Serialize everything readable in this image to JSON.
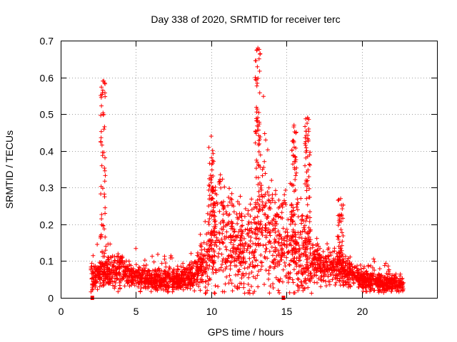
{
  "chart_data": {
    "type": "scatter",
    "title": "Day 338 of 2020, SRMTID for receiver terc",
    "xlabel": "GPS time / hours",
    "ylabel": "SRMTID / TECUs",
    "xlim": [
      0,
      25
    ],
    "ylim": [
      0,
      0.7
    ],
    "xticks": [
      "0",
      "5",
      "10",
      "15",
      "20"
    ],
    "yticks": [
      "0",
      "0.1",
      "0.2",
      "0.3",
      "0.4",
      "0.5",
      "0.6",
      "0.7"
    ],
    "grid": true,
    "marker": "+",
    "color": "#ff0000",
    "gap_markers_x": [
      2.1,
      14.8
    ],
    "envelope": {
      "time_hours": [
        2.0,
        2.5,
        3.0,
        3.5,
        4.0,
        4.5,
        5.0,
        5.5,
        6.0,
        6.5,
        7.0,
        7.5,
        8.0,
        8.5,
        9.0,
        9.5,
        10.0,
        10.5,
        11.0,
        11.5,
        12.0,
        12.5,
        13.0,
        13.5,
        14.0,
        14.5,
        15.0,
        15.5,
        16.0,
        16.5,
        17.0,
        17.5,
        18.0,
        18.5,
        19.0,
        19.5,
        20.0,
        20.5,
        21.0,
        21.5,
        22.0,
        22.5,
        22.8
      ],
      "typical_srmtid": [
        0.055,
        0.06,
        0.07,
        0.07,
        0.08,
        0.06,
        0.06,
        0.05,
        0.05,
        0.05,
        0.05,
        0.045,
        0.05,
        0.06,
        0.07,
        0.09,
        0.14,
        0.19,
        0.17,
        0.15,
        0.13,
        0.12,
        0.16,
        0.19,
        0.17,
        0.15,
        0.13,
        0.12,
        0.13,
        0.11,
        0.09,
        0.08,
        0.08,
        0.08,
        0.07,
        0.06,
        0.05,
        0.045,
        0.045,
        0.04,
        0.04,
        0.035,
        0.03
      ]
    },
    "spikes": [
      {
        "time_hours": 2.8,
        "peak_srmtid": 0.59
      },
      {
        "time_hours": 10.0,
        "peak_srmtid": 0.44
      },
      {
        "time_hours": 13.1,
        "peak_srmtid": 0.68
      },
      {
        "time_hours": 15.5,
        "peak_srmtid": 0.47
      },
      {
        "time_hours": 16.4,
        "peak_srmtid": 0.49
      },
      {
        "time_hours": 18.6,
        "peak_srmtid": 0.27
      }
    ]
  }
}
